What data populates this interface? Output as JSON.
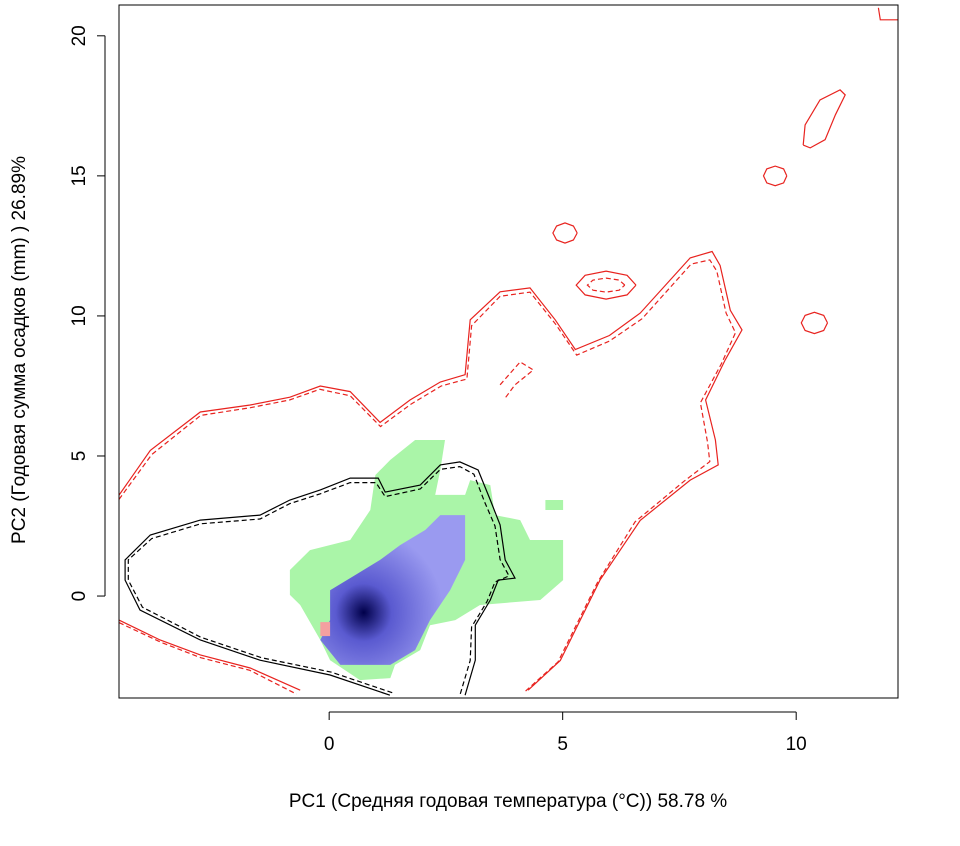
{
  "chart_data": {
    "type": "contour",
    "x_label": "PC1 (Средняя годовая температура (°C)) 58.78 %",
    "y_label": "PC2 (Годовая сумма осадков  (mm) ) 26.89%",
    "xlim": [
      -4.5,
      12.18
    ],
    "ylim": [
      -3.64,
      21.1
    ],
    "xticks": [
      0,
      5,
      10
    ],
    "yticks": [
      0,
      5,
      10,
      15,
      20
    ],
    "series": [
      {
        "color": "#aaf5a8",
        "fill": true,
        "x": [
          -0.84,
          -0.41,
          0.45,
          0.88,
          0.99,
          1.31,
          1.84,
          2.48,
          2.38,
          2.27,
          2.91,
          3.02,
          3.45,
          3.55,
          4.09,
          4.3,
          5.01,
          5.01,
          4.52,
          3.23,
          2.7,
          2.16,
          1.95,
          1.41,
          1.31,
          0.66,
          0.02,
          -0.19,
          -0.62,
          -0.84,
          null,
          4.63,
          5.01,
          5.01,
          4.63
        ],
        "y": [
          0.93,
          1.64,
          2.0,
          3.07,
          4.32,
          4.86,
          5.57,
          5.57,
          4.5,
          3.61,
          3.61,
          4.14,
          3.96,
          2.89,
          2.71,
          2.0,
          2.0,
          0.57,
          -0.14,
          -0.32,
          -0.86,
          -1.04,
          -1.93,
          -2.46,
          -2.93,
          -3.0,
          -2.29,
          -1.57,
          -0.32,
          0.04,
          null,
          3.07,
          3.07,
          3.43,
          3.43
        ]
      },
      {
        "color": "#9a9af0",
        "fill": true,
        "gradient": true,
        "x": [
          0.02,
          0.56,
          1.09,
          1.52,
          2.06,
          2.38,
          2.91,
          2.91,
          2.59,
          2.16,
          1.84,
          1.31,
          0.24,
          -0.19,
          0.02
        ],
        "y": [
          0.21,
          0.75,
          1.29,
          1.82,
          2.36,
          2.89,
          2.89,
          1.29,
          0.21,
          -0.86,
          -1.93,
          -2.46,
          -2.46,
          -1.57,
          -0.86
        ]
      },
      {
        "color": "#f4a0a0",
        "fill": true,
        "x": [
          -0.19,
          0.02,
          0.02,
          -0.19
        ],
        "y": [
          -1.43,
          -1.43,
          -0.93,
          -0.93
        ]
      },
      {
        "color": "#000000",
        "dash": false,
        "x": [
          1.3,
          0.02,
          -1.48,
          -2.76,
          -4.05,
          -4.37,
          -4.37,
          -3.83,
          -2.76,
          -1.48,
          -0.84,
          -0.19,
          0.45,
          1.05,
          1.2,
          1.95,
          2.38,
          2.8,
          3.19,
          3.45,
          3.66,
          3.77,
          3.98,
          3.62,
          3.45,
          3.13,
          3.13,
          2.91
        ],
        "y": [
          -3.54,
          -2.82,
          -2.29,
          -1.57,
          -0.5,
          0.57,
          1.29,
          2.18,
          2.71,
          2.89,
          3.43,
          3.79,
          4.21,
          4.21,
          3.71,
          3.96,
          4.68,
          4.79,
          4.5,
          3.43,
          2.54,
          1.29,
          0.64,
          0.57,
          -0.14,
          -1.04,
          -2.29,
          -3.54
        ]
      },
      {
        "color": "#000000",
        "dash": true,
        "x": [
          1.35,
          0.05,
          -1.45,
          -2.75,
          -4.0,
          -4.3,
          -4.3,
          -3.8,
          -2.75,
          -1.48,
          -0.84,
          -0.19,
          0.45,
          1.0,
          1.2,
          1.95,
          2.38,
          2.8,
          3.1,
          3.33,
          3.55,
          3.66,
          3.85,
          3.55,
          3.38,
          3.05,
          3.02,
          2.8
        ],
        "y": [
          -3.45,
          -2.72,
          -2.2,
          -1.47,
          -0.4,
          0.57,
          1.29,
          2.05,
          2.58,
          2.75,
          3.3,
          3.65,
          4.05,
          4.05,
          3.55,
          3.82,
          4.52,
          4.62,
          4.35,
          3.35,
          2.5,
          1.3,
          0.72,
          0.5,
          -0.2,
          -1.1,
          -2.3,
          -3.54
        ]
      },
      {
        "color": "#e8231f",
        "dash": false,
        "x": [
          -4.5,
          -3.83,
          -2.76,
          -1.69,
          -0.84,
          -0.19,
          0.45,
          1.09,
          1.73,
          2.38,
          2.91,
          3.02,
          3.66,
          4.3,
          4.84,
          5.27,
          6.0,
          6.66,
          7.73,
          8.2,
          8.37,
          8.59,
          8.84,
          8.48,
          8.06,
          8.27,
          8.33,
          7.73,
          6.66,
          5.8,
          4.95,
          4.26,
          null,
          -4.5,
          -3.62,
          -2.76,
          -1.69,
          -0.62,
          null,
          5.31,
          5.23,
          5.05,
          4.87,
          4.79,
          4.87,
          5.05,
          5.23,
          5.31,
          null,
          6.57,
          6.38,
          5.93,
          5.48,
          5.29,
          5.48,
          5.93,
          6.38,
          6.57,
          null,
          9.8,
          9.73,
          9.55,
          9.37,
          9.3,
          9.37,
          9.55,
          9.73,
          9.8,
          null,
          10.67,
          10.59,
          10.39,
          10.19,
          10.11,
          10.19,
          10.39,
          10.59,
          10.67,
          null,
          10.15,
          10.19,
          10.51,
          10.94,
          11.05,
          10.84,
          10.62,
          10.3,
          10.15,
          null,
          11.76,
          11.8,
          12.18
        ],
        "y": [
          3.6,
          5.2,
          6.57,
          6.82,
          7.1,
          7.5,
          7.3,
          6.2,
          7.0,
          7.64,
          7.9,
          9.86,
          10.86,
          11.0,
          9.86,
          8.8,
          9.3,
          10.1,
          12.07,
          12.3,
          11.8,
          10.2,
          9.5,
          8.43,
          7.0,
          5.57,
          4.68,
          4.14,
          2.7,
          0.57,
          -2.3,
          -3.36,
          null,
          -0.86,
          -1.57,
          -2.1,
          -2.57,
          -3.36,
          null,
          12.96,
          13.21,
          13.32,
          13.21,
          12.96,
          12.71,
          12.6,
          12.71,
          12.96,
          null,
          11.1,
          11.45,
          11.6,
          11.45,
          11.1,
          10.75,
          10.6,
          10.75,
          11.1,
          null,
          15.0,
          15.25,
          15.35,
          15.25,
          15.0,
          14.75,
          14.65,
          14.75,
          15.0,
          null,
          9.75,
          10.02,
          10.13,
          10.02,
          9.75,
          9.48,
          9.37,
          9.48,
          9.75,
          null,
          16.1,
          16.82,
          17.71,
          18.07,
          17.89,
          17.18,
          16.29,
          16.0,
          16.1,
          null,
          21.0,
          20.57,
          20.57
        ]
      },
      {
        "color": "#e8231f",
        "dash": true,
        "x": [
          -4.5,
          -3.8,
          -2.75,
          -1.7,
          -0.85,
          -0.2,
          0.45,
          1.1,
          1.75,
          2.4,
          2.95,
          3.05,
          3.66,
          4.3,
          4.85,
          5.3,
          6.0,
          6.7,
          7.75,
          8.15,
          8.3,
          8.5,
          8.7,
          8.4,
          7.95,
          8.1,
          8.15,
          7.6,
          6.55,
          5.75,
          4.9,
          4.2,
          null,
          -4.5,
          -3.6,
          -2.75,
          -1.7,
          -0.7,
          null,
          6.33,
          6.21,
          5.93,
          5.65,
          5.53,
          5.65,
          5.93,
          6.21,
          6.33,
          null,
          3.66,
          4.09,
          4.37,
          3.98,
          3.77
        ],
        "y": [
          3.45,
          5.05,
          6.45,
          6.72,
          7.0,
          7.38,
          7.15,
          6.05,
          6.85,
          7.5,
          7.75,
          9.65,
          10.7,
          10.85,
          9.7,
          8.6,
          9.1,
          9.9,
          11.85,
          12.0,
          11.6,
          10.1,
          9.4,
          8.3,
          6.9,
          5.5,
          4.8,
          4.1,
          2.65,
          0.5,
          -2.35,
          -3.4,
          null,
          -0.95,
          -1.65,
          -2.2,
          -2.65,
          -3.5,
          null,
          11.1,
          11.28,
          11.35,
          11.28,
          11.1,
          10.92,
          10.85,
          10.92,
          11.1,
          null,
          7.54,
          8.36,
          8.07,
          7.54,
          7.07
        ]
      }
    ]
  }
}
